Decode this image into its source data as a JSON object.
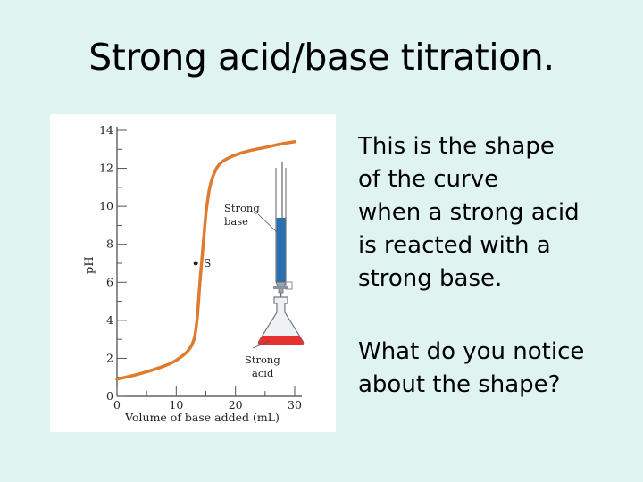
{
  "slide": {
    "title": "Strong acid/base titration.",
    "paragraphs": [
      "This is the shape\nof the curve\nwhen a strong acid\nis reacted with a\nstrong base.",
      "What do you notice\nabout the shape?"
    ]
  },
  "colors": {
    "background": "#dff4f1",
    "curve": "#e07a2e",
    "base_liquid": "#2a6fb0",
    "acid_liquid": "#e53030"
  },
  "icons": [
    "burette-icon",
    "flask-icon"
  ],
  "chart_data": {
    "type": "line",
    "xlabel": "Volume of base added (mL)",
    "ylabel": "pH",
    "xlim": [
      0,
      30
    ],
    "ylim": [
      0,
      14
    ],
    "xticks": [
      0,
      10,
      20,
      30
    ],
    "yticks": [
      0,
      2,
      4,
      6,
      8,
      10,
      12,
      14
    ],
    "grid": false,
    "series": [
      {
        "x": [
          0,
          4,
          8,
          10,
          12,
          13,
          13.5,
          14,
          14.5,
          15,
          15.3,
          15.6,
          16,
          16.5,
          17,
          18,
          20,
          22,
          25,
          28,
          30
        ],
        "y": [
          0.9,
          1.2,
          1.6,
          1.9,
          2.4,
          3.0,
          4.0,
          6.0,
          7.8,
          9.6,
          10.3,
          10.9,
          11.4,
          11.8,
          12.1,
          12.4,
          12.7,
          12.9,
          13.1,
          13.3,
          13.4
        ]
      }
    ],
    "annotations": [
      {
        "text": "S",
        "x": 14.5,
        "y": 7.0
      },
      {
        "text": "Strong\nbase"
      },
      {
        "text": "Strong\nacid"
      }
    ]
  }
}
